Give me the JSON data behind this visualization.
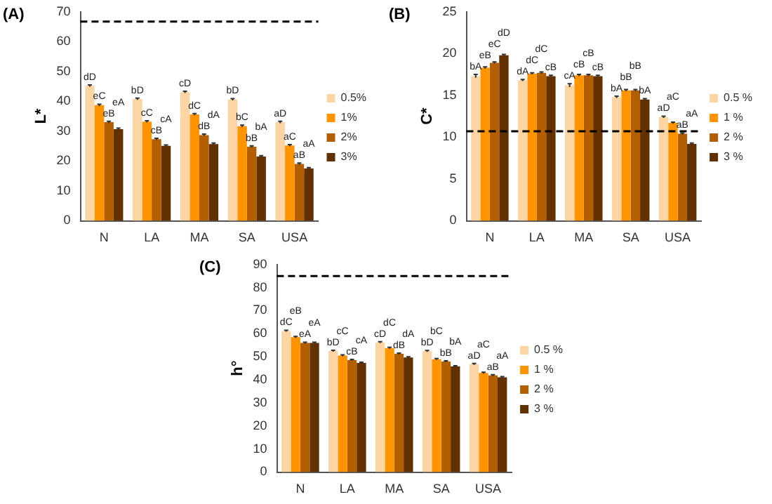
{
  "chart_data": [
    {
      "type": "bar",
      "title": "(A)",
      "ylabel": "L*",
      "categories": [
        "N",
        "LA",
        "MA",
        "SA",
        "USA"
      ],
      "ylim": [
        0,
        70
      ],
      "yticks": [
        0,
        10,
        20,
        30,
        40,
        50,
        60,
        70
      ],
      "grid": false,
      "legend": "right",
      "ref_lines": [
        {
          "axis": "y",
          "value": 66.7,
          "color": "#000000",
          "line_style": "dashed"
        }
      ],
      "series": [
        {
          "name": "0.5%",
          "color": "#fdd5a3",
          "values": [
            45.2,
            40.8,
            43.1,
            40.6,
            33.0
          ],
          "errors": [
            0.3,
            0.3,
            0.3,
            0.3,
            0.3
          ],
          "value_labels": [
            "dD",
            "bD",
            "cD",
            "bD",
            "aD"
          ]
        },
        {
          "name": "1%",
          "color": "#ff9400",
          "values": [
            38.7,
            33.2,
            35.6,
            31.7,
            25.2
          ],
          "errors": [
            0.3,
            0.3,
            0.3,
            0.3,
            0.3
          ],
          "value_labels": [
            "eC",
            "cC",
            "dC",
            "bC",
            "aC"
          ]
        },
        {
          "name": "2%",
          "color": "#b35f00",
          "values": [
            33.0,
            27.3,
            28.7,
            24.8,
            19.0
          ],
          "errors": [
            0.3,
            0.3,
            0.3,
            0.3,
            0.3
          ],
          "value_labels": [
            "eB",
            "cB",
            "dB",
            "bB",
            "aB"
          ]
        },
        {
          "name": "3%",
          "color": "#633000",
          "values": [
            30.7,
            25.1,
            25.7,
            21.5,
            17.5
          ],
          "errors": [
            0.3,
            0.3,
            0.3,
            0.3,
            0.3
          ],
          "value_labels": [
            "eA",
            "cA",
            "dA",
            "bA",
            "aA"
          ]
        }
      ]
    },
    {
      "type": "bar",
      "title": "(B)",
      "ylabel": "C*",
      "categories": [
        "N",
        "LA",
        "MA",
        "SA",
        "USA"
      ],
      "ylim": [
        0,
        25
      ],
      "yticks": [
        0,
        5,
        10,
        15,
        20,
        25
      ],
      "grid": false,
      "legend": "right",
      "ref_lines": [
        {
          "axis": "y",
          "value": 10.7,
          "color": "#000000",
          "line_style": "dashed"
        }
      ],
      "series": [
        {
          "name": "0.5 %",
          "color": "#fdd5a3",
          "values": [
            17.3,
            16.8,
            16.2,
            14.8,
            12.4
          ],
          "errors": [
            0.2,
            0.1,
            0.2,
            0.1,
            0.1
          ],
          "value_labels": [
            "bA",
            "dA",
            "cA",
            "bA",
            "aD"
          ]
        },
        {
          "name": "1 %",
          "color": "#ff9400",
          "values": [
            18.3,
            17.6,
            17.4,
            15.6,
            11.7
          ],
          "errors": [
            0.1,
            0.1,
            0.1,
            0.1,
            0.1
          ],
          "value_labels": [
            "eB",
            "dC",
            "cB",
            "bB",
            "aC"
          ]
        },
        {
          "name": "2 %",
          "color": "#b35f00",
          "values": [
            18.9,
            17.7,
            17.4,
            15.6,
            10.4
          ],
          "errors": [
            0.1,
            0.1,
            0.1,
            0.1,
            0.1
          ],
          "value_labels": [
            "eC",
            "dC",
            "cB",
            "bB",
            "aB"
          ]
        },
        {
          "name": "3 %",
          "color": "#633000",
          "values": [
            19.8,
            17.3,
            17.3,
            14.5,
            9.2
          ],
          "errors": [
            0.1,
            0.1,
            0.1,
            0.1,
            0.1
          ],
          "value_labels": [
            "dD",
            "cB",
            "cB",
            "bA",
            "aA"
          ]
        }
      ]
    },
    {
      "type": "bar",
      "title": "(C)",
      "ylabel": "h°",
      "categories": [
        "N",
        "LA",
        "MA",
        "SA",
        "USA"
      ],
      "ylim": [
        0,
        90
      ],
      "yticks": [
        0,
        10,
        20,
        30,
        40,
        50,
        60,
        70,
        80,
        90
      ],
      "grid": false,
      "legend": "right",
      "ref_lines": [
        {
          "axis": "y",
          "value": 85,
          "color": "#000000",
          "line_style": "dashed"
        }
      ],
      "series": [
        {
          "name": "0.5 %",
          "color": "#fdd5a3",
          "values": [
            61.2,
            52.5,
            56.2,
            52.4,
            46.8
          ],
          "errors": [
            0.3,
            0.3,
            0.3,
            0.3,
            0.3
          ],
          "value_labels": [
            "dC",
            "bD",
            "cD",
            "bD",
            "aD"
          ]
        },
        {
          "name": "1 %",
          "color": "#ff9400",
          "values": [
            58.5,
            50.5,
            53.8,
            48.9,
            43.0
          ],
          "errors": [
            0.3,
            0.3,
            0.3,
            0.3,
            0.3
          ],
          "value_labels": [
            "eB",
            "cC",
            "dC",
            "bC",
            "aC"
          ]
        },
        {
          "name": "2 %",
          "color": "#b35f00",
          "values": [
            56.0,
            48.5,
            51.3,
            47.9,
            41.9
          ],
          "errors": [
            0.3,
            0.3,
            0.3,
            0.3,
            0.3
          ],
          "value_labels": [
            "eA",
            "cB",
            "dB",
            "bB",
            "aB"
          ]
        },
        {
          "name": "3 %",
          "color": "#633000",
          "values": [
            56.0,
            47.3,
            49.7,
            45.8,
            41.1
          ],
          "errors": [
            0.3,
            0.3,
            0.3,
            0.3,
            0.3
          ],
          "value_labels": [
            "eA",
            "cA",
            "dA",
            "bA",
            "aA"
          ]
        }
      ]
    }
  ]
}
